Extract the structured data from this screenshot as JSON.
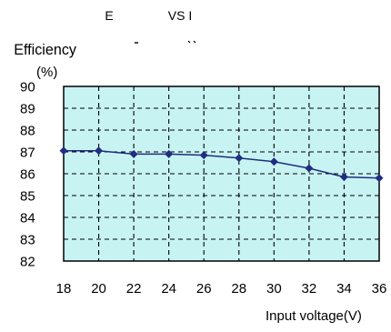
{
  "chart_data": {
    "type": "line",
    "title_left": "E",
    "title_right": "VS I",
    "ylabel": "Efficiency",
    "yunit": "(%)",
    "xlabel": "Input voltage(V)",
    "x": [
      18,
      20,
      22,
      24,
      26,
      28,
      30,
      32,
      34,
      36
    ],
    "y": [
      87.05,
      87.05,
      86.9,
      86.9,
      86.85,
      86.72,
      86.55,
      86.25,
      85.85,
      85.8
    ],
    "xlim": [
      18,
      36
    ],
    "ylim": [
      82,
      90
    ],
    "xticks": [
      "18",
      "20",
      "22",
      "24",
      "26",
      "28",
      "30",
      "32",
      "34",
      "36"
    ],
    "yticks": [
      "90",
      "89",
      "88",
      "87",
      "86",
      "85",
      "84",
      "83",
      "82"
    ],
    "grid": true,
    "grid_style": "dashed",
    "colors": {
      "line": "#1f2f7a",
      "marker": "#1f2e80",
      "plot_background": "#c8f3f3",
      "grid": "#000000",
      "frame": "#000000"
    }
  }
}
